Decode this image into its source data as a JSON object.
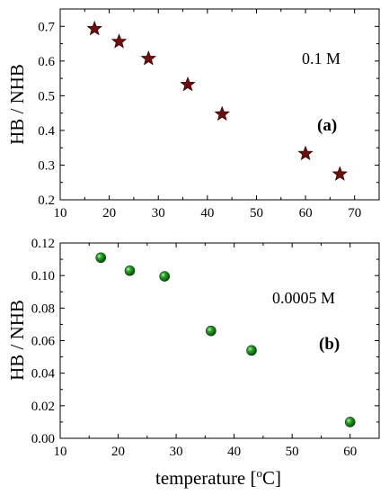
{
  "chart_data": [
    {
      "type": "scatter",
      "panel": "(a)",
      "annotation": "0.1 M",
      "xlabel": "",
      "ylabel": "HB / NHB",
      "xlim": [
        10,
        75
      ],
      "ylim": [
        0.2,
        0.75
      ],
      "xticks": [
        "10",
        "20",
        "30",
        "40",
        "50",
        "60",
        "70"
      ],
      "yticks": [
        "0.2",
        "0.3",
        "0.4",
        "0.5",
        "0.6",
        "0.7"
      ],
      "marker": "star",
      "color": "#6b0f0f",
      "points": [
        {
          "x": 17,
          "y": 0.693
        },
        {
          "x": 22,
          "y": 0.656
        },
        {
          "x": 28,
          "y": 0.607
        },
        {
          "x": 36,
          "y": 0.532
        },
        {
          "x": 43,
          "y": 0.447
        },
        {
          "x": 60,
          "y": 0.333
        },
        {
          "x": 67,
          "y": 0.274
        }
      ]
    },
    {
      "type": "scatter",
      "panel": "(b)",
      "annotation": "0.0005 M",
      "xlabel": "temperature [",
      "xlabel_sup": "o",
      "xlabel_end": "C]",
      "ylabel": "HB / NHB",
      "xlim": [
        10,
        65
      ],
      "ylim": [
        0.0,
        0.12
      ],
      "xticks": [
        "10",
        "20",
        "30",
        "40",
        "50",
        "60"
      ],
      "yticks": [
        "0.00",
        "0.02",
        "0.04",
        "0.06",
        "0.08",
        "0.10",
        "0.12"
      ],
      "marker": "sphere",
      "color": "#1f8a1f",
      "points": [
        {
          "x": 17,
          "y": 0.111
        },
        {
          "x": 22,
          "y": 0.103
        },
        {
          "x": 28,
          "y": 0.0995
        },
        {
          "x": 36,
          "y": 0.066
        },
        {
          "x": 43,
          "y": 0.054
        },
        {
          "x": 60,
          "y": 0.01
        }
      ]
    }
  ]
}
